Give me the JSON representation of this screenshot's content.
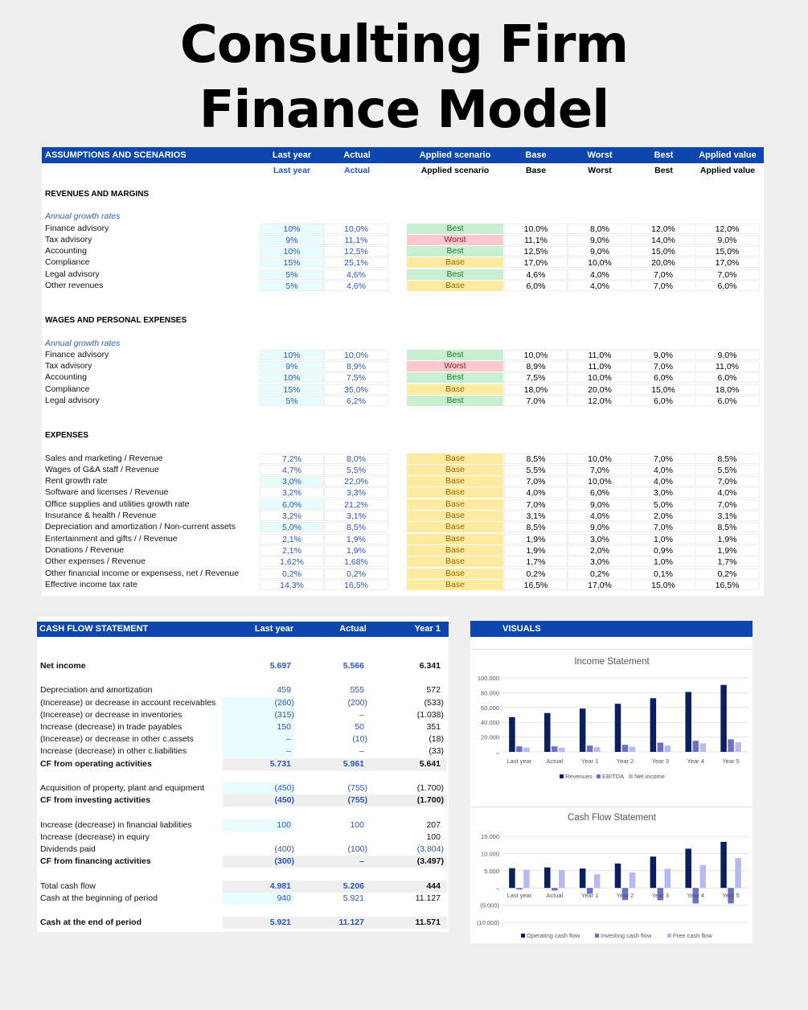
{
  "title": {
    "line1": "Consulting Firm",
    "line2": "Finance Model"
  },
  "assumptions": {
    "header": {
      "title": "ASSUMPTIONS AND SCENARIOS",
      "last_year": "Last year",
      "actual": "Actual",
      "applied_scenario": "Applied scenario",
      "base": "Base",
      "worst": "Worst",
      "best": "Best",
      "applied_value": "Applied value"
    },
    "sections": [
      {
        "title": "REVENUES AND MARGINS",
        "subtitle": "Annual growth rates",
        "rows": [
          {
            "label": "Finance advisory",
            "last_year": "10%",
            "actual": "10,0%",
            "scenario": "Best",
            "base": "10,0%",
            "worst": "8,0%",
            "best": "12,0%",
            "applied": "12,0%"
          },
          {
            "label": "Tax advisory",
            "last_year": "9%",
            "actual": "11,1%",
            "scenario": "Worst",
            "base": "11,1%",
            "worst": "9,0%",
            "best": "14,0%",
            "applied": "9,0%"
          },
          {
            "label": "Accounting",
            "last_year": "10%",
            "actual": "12,5%",
            "scenario": "Best",
            "base": "12,5%",
            "worst": "9,0%",
            "best": "15,0%",
            "applied": "15,0%"
          },
          {
            "label": "Compliance",
            "last_year": "15%",
            "actual": "25,1%",
            "scenario": "Base",
            "base": "17,0%",
            "worst": "10,0%",
            "best": "20,0%",
            "applied": "17,0%"
          },
          {
            "label": "Legal advisory",
            "last_year": "5%",
            "actual": "4,6%",
            "scenario": "Best",
            "base": "4,6%",
            "worst": "4,0%",
            "best": "7,0%",
            "applied": "7,0%"
          },
          {
            "label": "Other revenues",
            "last_year": "5%",
            "actual": "4,6%",
            "scenario": "Base",
            "base": "6,0%",
            "worst": "4,0%",
            "best": "7,0%",
            "applied": "6,0%"
          }
        ]
      },
      {
        "title": "WAGES AND PERSONAL EXPENSES",
        "subtitle": "Annual growth rates",
        "rows": [
          {
            "label": "Finance advisory",
            "last_year": "10%",
            "actual": "10,0%",
            "scenario": "Best",
            "base": "10,0%",
            "worst": "11,0%",
            "best": "9,0%",
            "applied": "9,0%"
          },
          {
            "label": "Tax advisory",
            "last_year": "9%",
            "actual": "8,9%",
            "scenario": "Worst",
            "base": "8,9%",
            "worst": "11,0%",
            "best": "7,0%",
            "applied": "11,0%"
          },
          {
            "label": "Accounting",
            "last_year": "10%",
            "actual": "7,5%",
            "scenario": "Best",
            "base": "7,5%",
            "worst": "10,0%",
            "best": "6,0%",
            "applied": "6,0%"
          },
          {
            "label": "Compliance",
            "last_year": "15%",
            "actual": "35,0%",
            "scenario": "Base",
            "base": "18,0%",
            "worst": "20,0%",
            "best": "15,0%",
            "applied": "18,0%"
          },
          {
            "label": "Legal advisory",
            "last_year": "5%",
            "actual": "6,2%",
            "scenario": "Best",
            "base": "7,0%",
            "worst": "12,0%",
            "best": "6,0%",
            "applied": "6,0%"
          }
        ]
      },
      {
        "title": "EXPENSES",
        "rows": [
          {
            "label": "Sales and marketing / Revenue",
            "last_year": "7,2%",
            "actual": "8,0%",
            "scenario": "Base",
            "base": "8,5%",
            "worst": "10,0%",
            "best": "7,0%",
            "applied": "8,5%"
          },
          {
            "label": "Wages of G&A staff / Revenue",
            "last_year": "4,7%",
            "actual": "5,5%",
            "scenario": "Base",
            "base": "5,5%",
            "worst": "7,0%",
            "best": "4,0%",
            "applied": "5,5%"
          },
          {
            "label": "Rent growth rate",
            "last_year": "3,0%",
            "actual": "22,0%",
            "scenario": "Base",
            "base": "7,0%",
            "worst": "10,0%",
            "best": "4,0%",
            "applied": "7,0%",
            "input": true
          },
          {
            "label": "Software and licenses / Revenue",
            "last_year": "3,2%",
            "actual": "3,3%",
            "scenario": "Base",
            "base": "4,0%",
            "worst": "6,0%",
            "best": "3,0%",
            "applied": "4,0%"
          },
          {
            "label": "Office supplies and utilities growth rate",
            "last_year": "6,0%",
            "actual": "21,2%",
            "scenario": "Base",
            "base": "7,0%",
            "worst": "9,0%",
            "best": "5,0%",
            "applied": "7,0%",
            "input": true
          },
          {
            "label": "Insurance & health / Revenue",
            "last_year": "3,2%",
            "actual": "3,1%",
            "scenario": "Base",
            "base": "3,1%",
            "worst": "4,0%",
            "best": "2,0%",
            "applied": "3,1%"
          },
          {
            "label": "Depreciation and amortization / Non-current assets",
            "last_year": "5,0%",
            "actual": "8,5%",
            "scenario": "Base",
            "base": "8,5%",
            "worst": "9,0%",
            "best": "7,0%",
            "applied": "8,5%",
            "input": true
          },
          {
            "label": "Entertainment and gifts / / Revenue",
            "last_year": "2,1%",
            "actual": "1,9%",
            "scenario": "Base",
            "base": "1,9%",
            "worst": "3,0%",
            "best": "1,0%",
            "applied": "1,9%"
          },
          {
            "label": "Donations / Revenue",
            "last_year": "2,1%",
            "actual": "1,9%",
            "scenario": "Base",
            "base": "1,9%",
            "worst": "2,0%",
            "best": "0,9%",
            "applied": "1,9%"
          },
          {
            "label": "Other expenses / Revenue",
            "last_year": "1,62%",
            "actual": "1,68%",
            "scenario": "Base",
            "base": "1,7%",
            "worst": "3,0%",
            "best": "1,0%",
            "applied": "1,7%"
          },
          {
            "label": "Other financial income or expensess, net / Revenue",
            "last_year": "0,2%",
            "actual": "0,2%",
            "scenario": "Base",
            "base": "0,2%",
            "worst": "0,2%",
            "best": "0,1%",
            "applied": "0,2%"
          },
          {
            "label": "Effective income tax rate",
            "last_year": "14,3%",
            "actual": "16,5%",
            "scenario": "Base",
            "base": "16,5%",
            "worst": "17,0%",
            "best": "15,0%",
            "applied": "16,5%"
          }
        ]
      }
    ]
  },
  "cash_flow": {
    "header": {
      "title": "CASH FLOW STATEMENT",
      "last_year": "Last year",
      "actual": "Actual",
      "year1": "Year 1"
    },
    "rows": [
      {
        "label": "Net income",
        "v": [
          "5.697",
          "5.566",
          "6.341"
        ],
        "type": "bold"
      },
      {
        "type": "blank"
      },
      {
        "label": "Depreciation and amortization",
        "v": [
          "459",
          "555",
          "572"
        ]
      },
      {
        "label": "(Incerease) or decrease in account receivables",
        "v": [
          "(260)",
          "(200)",
          "(533)"
        ],
        "input": true
      },
      {
        "label": "(Incerease) or decrease in inventories",
        "v": [
          "(315)",
          "–",
          "(1.038)"
        ],
        "input": true
      },
      {
        "label": "Increase (decrease) in trade payables",
        "v": [
          "150",
          "50",
          "351"
        ],
        "input": true
      },
      {
        "label": "(Incerease) or decrease in other c.assets",
        "v": [
          "–",
          "(10)",
          "(18)"
        ],
        "input": true
      },
      {
        "label": "Increase (decrease) in other c.liabilities",
        "v": [
          "–",
          "–",
          "(33)"
        ],
        "input": true
      },
      {
        "label": "CF from operating activities",
        "v": [
          "5.731",
          "5.961",
          "5.641"
        ],
        "type": "total"
      },
      {
        "type": "blank"
      },
      {
        "label": "Acquisition of property, plant and equipment",
        "v": [
          "(450)",
          "(755)",
          "(1.700)"
        ],
        "input": true
      },
      {
        "label": "CF from investing activities",
        "v": [
          "(450)",
          "(755)",
          "(1.700)"
        ],
        "type": "total"
      },
      {
        "type": "blank"
      },
      {
        "label": "Increase (decrease) in financial liabilities",
        "v": [
          "100",
          "100",
          "207"
        ],
        "input": true
      },
      {
        "label": "Increase (decrease) in equiry",
        "v": [
          "",
          "",
          "100"
        ]
      },
      {
        "label": "Dividends paid",
        "v": [
          "(400)",
          "(100)",
          "(3.804)"
        ]
      },
      {
        "label": "CF from financing activities",
        "v": [
          "(300)",
          "–",
          "(3.497)"
        ],
        "type": "total"
      },
      {
        "type": "blank"
      },
      {
        "label": "Total cash flow",
        "v": [
          "4.981",
          "5.206",
          "444"
        ],
        "type": "shade"
      },
      {
        "label": "Cash at the beginning of period",
        "v": [
          "940",
          "5.921",
          "11.127"
        ],
        "input": true
      },
      {
        "type": "blank"
      },
      {
        "label": "Cash at the end of period",
        "v": [
          "5.921",
          "11.127",
          "11.571"
        ],
        "type": "total"
      }
    ]
  },
  "visuals": {
    "title": "VISUALS"
  },
  "chart_data": [
    {
      "type": "bar",
      "title": "Income Statement",
      "categories": [
        "Last year",
        "Actual",
        "Year 1",
        "Year 2",
        "Year 3",
        "Year 4",
        "Year 5"
      ],
      "series": [
        {
          "name": "Revenues",
          "color": "#0b1f5c",
          "values": [
            47000,
            52500,
            58500,
            65000,
            72500,
            81000,
            90500
          ]
        },
        {
          "name": "EBITDA",
          "color": "#6c70c8",
          "values": [
            7500,
            7500,
            8500,
            9500,
            12500,
            15000,
            17000
          ]
        },
        {
          "name": "Net income",
          "color": "#b5baf0",
          "values": [
            5700,
            5600,
            6300,
            7000,
            8500,
            11500,
            13000
          ]
        }
      ],
      "ylim": [
        0,
        100000
      ],
      "yticks": [
        "–",
        "20.000",
        "40.000",
        "60.000",
        "80.000",
        "100.000"
      ],
      "legend": "bottom",
      "grid": true
    },
    {
      "type": "bar",
      "title": "Cash Flow Statement",
      "categories": [
        "Last year",
        "Actual",
        "Year 1",
        "Year 2",
        "Year 3",
        "Year 4",
        "Year 5"
      ],
      "series": [
        {
          "name": "Operating cash flow",
          "color": "#0b1f5c",
          "values": [
            5731,
            5961,
            5641,
            7100,
            9100,
            11400,
            13400
          ]
        },
        {
          "name": "Investing cash flow",
          "color": "#6c70c8",
          "values": [
            -450,
            -755,
            -1700,
            -3500,
            -3600,
            -4500,
            -4500
          ]
        },
        {
          "name": "Free cash flow",
          "color": "#b5baf0",
          "values": [
            5300,
            5200,
            4000,
            4500,
            5600,
            6700,
            8700
          ]
        }
      ],
      "ylim": [
        -10000,
        15000
      ],
      "yticks": [
        "(10.000)",
        "(5.000)",
        "–",
        "5.000",
        "10.000",
        "15.000"
      ],
      "legend": "bottom",
      "grid": true
    }
  ]
}
